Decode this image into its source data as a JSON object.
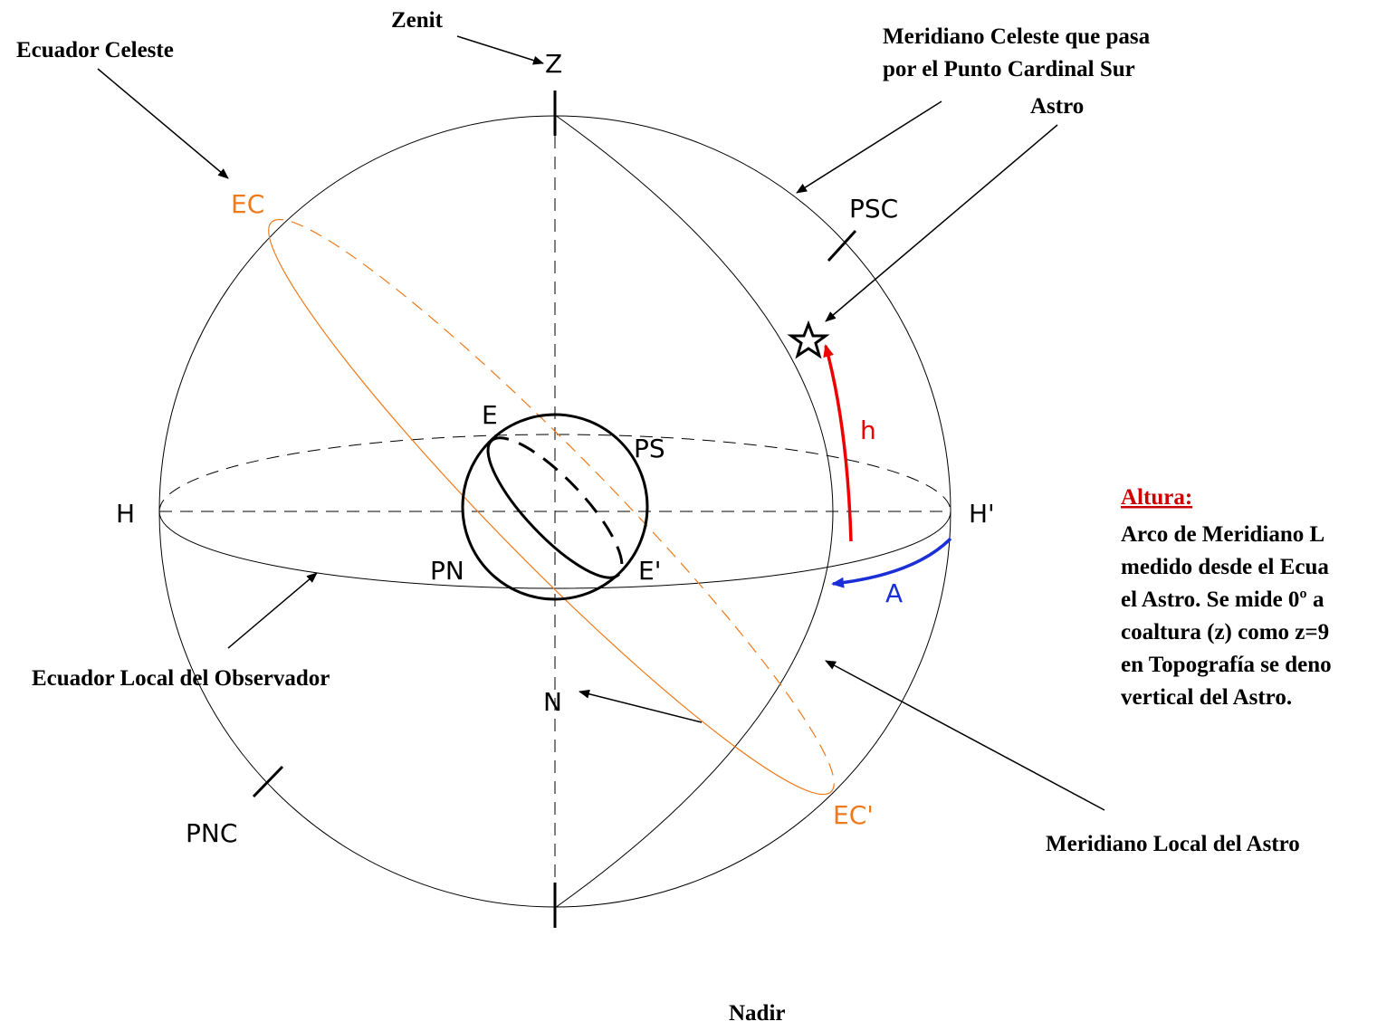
{
  "labels": {
    "zenit": "Zenit",
    "ecuador_celeste": "Ecuador Celeste",
    "meridiano_celeste": [
      "Meridiano Celeste que pasa",
      "por el Punto Cardinal Sur"
    ],
    "astro": "Astro",
    "ecuador_local": "Ecuador Local del Observador",
    "meridiano_local": "Meridiano Local del Astro",
    "nadir": "Nadir"
  },
  "points": {
    "z": "Z",
    "n": "N",
    "ec": "EC",
    "ec2": "EC'",
    "psc": "PSC",
    "pnc": "PNC",
    "h": "H",
    "h2": "H'",
    "e": "E",
    "e2": "E'",
    "ps": "PS",
    "pn": "PN",
    "altura": "h",
    "azimut": "A"
  },
  "note": {
    "title": "Altura:",
    "lines": [
      "Arco de Meridiano L",
      "medido desde el Ecua",
      "el Astro. Se mide 0º a",
      "coaltura (z) como z=9",
      "en Topografía se deno",
      "vertical del Astro."
    ]
  }
}
